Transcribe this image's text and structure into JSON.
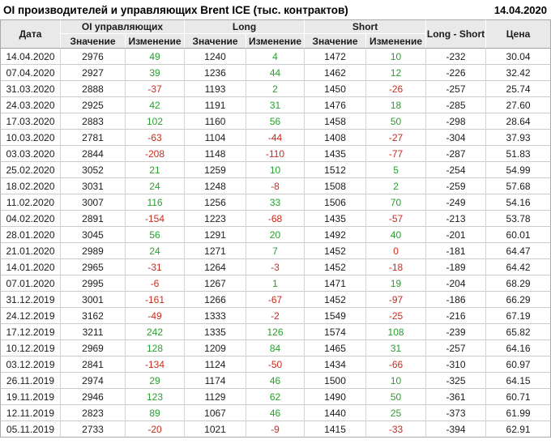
{
  "header": {
    "title": "OI производителей и управляющих Brent ICE (тыс. контрактов)",
    "report_date": "14.04.2020"
  },
  "colors": {
    "positive_change": "#279f2d",
    "negative_change": "#cc2a1c",
    "header_background": "#e9e9e9"
  },
  "table": {
    "columns": {
      "date": "Дата",
      "long_short": "Long - Short",
      "price": "Цена"
    },
    "groups": [
      {
        "label": "OI управляющих",
        "sub": [
          "Значение",
          "Изменение"
        ]
      },
      {
        "label": "Long",
        "sub": [
          "Значение",
          "Изменение"
        ]
      },
      {
        "label": "Short",
        "sub": [
          "Значение",
          "Изменение"
        ]
      }
    ],
    "rows": [
      [
        "14.04.2020",
        2976,
        49,
        1240,
        4,
        1472,
        10,
        -232,
        "30.04"
      ],
      [
        "07.04.2020",
        2927,
        39,
        1236,
        44,
        1462,
        12,
        -226,
        "32.42"
      ],
      [
        "31.03.2020",
        2888,
        -37,
        1193,
        2,
        1450,
        -26,
        -257,
        "25.74"
      ],
      [
        "24.03.2020",
        2925,
        42,
        1191,
        31,
        1476,
        18,
        -285,
        "27.60"
      ],
      [
        "17.03.2020",
        2883,
        102,
        1160,
        56,
        1458,
        50,
        -298,
        "28.64"
      ],
      [
        "10.03.2020",
        2781,
        -63,
        1104,
        -44,
        1408,
        -27,
        -304,
        "37.93"
      ],
      [
        "03.03.2020",
        2844,
        -208,
        1148,
        -110,
        1435,
        -77,
        -287,
        "51.83"
      ],
      [
        "25.02.2020",
        3052,
        21,
        1259,
        10,
        1512,
        5,
        -254,
        "54.99"
      ],
      [
        "18.02.2020",
        3031,
        24,
        1248,
        -8,
        1508,
        2,
        -259,
        "57.68"
      ],
      [
        "11.02.2020",
        3007,
        116,
        1256,
        33,
        1506,
        70,
        -249,
        "54.16"
      ],
      [
        "04.02.2020",
        2891,
        -154,
        1223,
        -68,
        1435,
        -57,
        -213,
        "53.78"
      ],
      [
        "28.01.2020",
        3045,
        56,
        1291,
        20,
        1492,
        40,
        -201,
        "60.01"
      ],
      [
        "21.01.2020",
        2989,
        24,
        1271,
        7,
        1452,
        0,
        -181,
        "64.47"
      ],
      [
        "14.01.2020",
        2965,
        -31,
        1264,
        -3,
        1452,
        -18,
        -189,
        "64.42"
      ],
      [
        "07.01.2020",
        2995,
        -6,
        1267,
        1,
        1471,
        19,
        -204,
        "68.29"
      ],
      [
        "31.12.2019",
        3001,
        -161,
        1266,
        -67,
        1452,
        -97,
        -186,
        "66.29"
      ],
      [
        "24.12.2019",
        3162,
        -49,
        1333,
        -2,
        1549,
        -25,
        -216,
        "67.19"
      ],
      [
        "17.12.2019",
        3211,
        242,
        1335,
        126,
        1574,
        108,
        -239,
        "65.82"
      ],
      [
        "10.12.2019",
        2969,
        128,
        1209,
        84,
        1465,
        31,
        -257,
        "64.16"
      ],
      [
        "03.12.2019",
        2841,
        -134,
        1124,
        -50,
        1434,
        -66,
        -310,
        "60.97"
      ],
      [
        "26.11.2019",
        2974,
        29,
        1174,
        46,
        1500,
        10,
        -325,
        "64.15"
      ],
      [
        "19.11.2019",
        2946,
        123,
        1129,
        62,
        1490,
        50,
        -361,
        "60.71"
      ],
      [
        "12.11.2019",
        2823,
        89,
        1067,
        46,
        1440,
        25,
        -373,
        "61.99"
      ],
      [
        "05.11.2019",
        2733,
        -20,
        1021,
        -9,
        1415,
        -33,
        -394,
        "62.91"
      ]
    ]
  }
}
